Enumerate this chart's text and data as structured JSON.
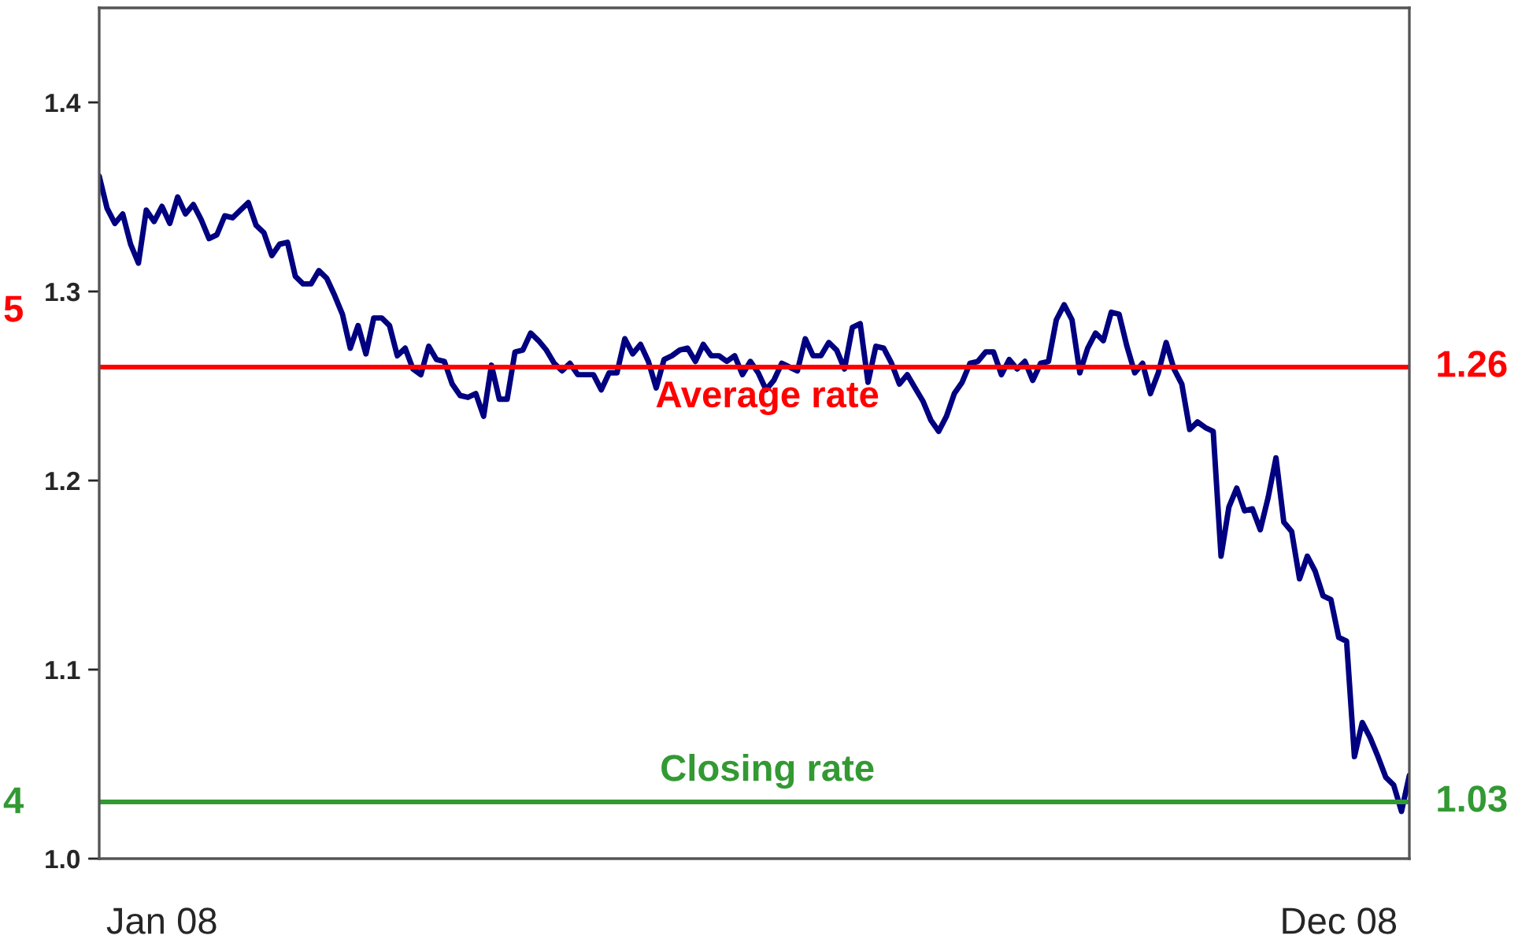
{
  "chart_data": {
    "type": "line",
    "categories": [
      null,
      null,
      null,
      null,
      null,
      null,
      null,
      null,
      "Jan 08",
      null,
      null,
      null,
      null,
      null,
      null,
      null,
      null,
      null,
      null,
      null,
      null,
      null,
      null,
      null,
      null,
      null,
      null,
      null,
      null,
      null,
      null,
      null,
      null,
      null,
      null,
      null,
      null,
      null,
      null,
      null,
      null,
      null,
      null,
      null,
      null,
      null,
      null,
      null,
      null,
      null,
      null,
      null,
      null,
      null,
      null,
      null,
      null,
      null,
      null,
      null,
      null,
      null,
      null,
      null,
      null,
      null,
      null,
      null,
      null,
      null,
      null,
      null,
      null,
      null,
      null,
      null,
      null,
      null,
      null,
      null,
      null,
      null,
      null,
      null,
      null,
      null,
      null,
      null,
      null,
      null,
      null,
      null,
      null,
      null,
      null,
      null,
      null,
      null,
      null,
      null,
      null,
      null,
      null,
      null,
      null,
      null,
      null,
      null,
      null,
      null,
      null,
      null,
      null,
      null,
      null,
      null,
      null,
      null,
      null,
      null,
      null,
      null,
      null,
      null,
      null,
      null,
      null,
      null,
      null,
      null,
      null,
      null,
      null,
      null,
      null,
      null,
      null,
      null,
      null,
      null,
      null,
      null,
      null,
      null,
      null,
      null,
      null,
      null,
      null,
      null,
      null,
      null,
      null,
      null,
      null,
      null,
      null,
      null,
      "Dec 08",
      null,
      null,
      null,
      null,
      null,
      null,
      null,
      null,
      null
    ],
    "series": [
      {
        "color": "#000080",
        "values": [
          1.361,
          1.344,
          1.336,
          1.341,
          1.325,
          1.315,
          1.343,
          1.337,
          1.345,
          1.336,
          1.35,
          1.341,
          1.346,
          1.338,
          1.328,
          1.33,
          1.34,
          1.339,
          1.343,
          1.347,
          1.335,
          1.331,
          1.319,
          1.325,
          1.326,
          1.308,
          1.304,
          1.304,
          1.311,
          1.307,
          1.298,
          1.288,
          1.27,
          1.282,
          1.267,
          1.286,
          1.286,
          1.282,
          1.266,
          1.27,
          1.259,
          1.256,
          1.271,
          1.264,
          1.263,
          1.251,
          1.245,
          1.244,
          1.246,
          1.234,
          1.261,
          1.243,
          1.243,
          1.268,
          1.269,
          1.278,
          1.274,
          1.269,
          1.262,
          1.258,
          1.262,
          1.256,
          1.256,
          1.256,
          1.248,
          1.257,
          1.257,
          1.275,
          1.267,
          1.272,
          1.263,
          1.249,
          1.264,
          1.266,
          1.269,
          1.27,
          1.263,
          1.272,
          1.266,
          1.266,
          1.263,
          1.266,
          1.256,
          1.263,
          1.257,
          1.248,
          1.253,
          1.262,
          1.26,
          1.258,
          1.275,
          1.266,
          1.266,
          1.273,
          1.269,
          1.259,
          1.281,
          1.283,
          1.252,
          1.271,
          1.27,
          1.262,
          1.251,
          1.256,
          1.249,
          1.242,
          1.232,
          1.226,
          1.234,
          1.246,
          1.252,
          1.262,
          1.263,
          1.268,
          1.268,
          1.256,
          1.264,
          1.259,
          1.263,
          1.253,
          1.262,
          1.263,
          1.285,
          1.293,
          1.285,
          1.257,
          1.27,
          1.278,
          1.274,
          1.289,
          1.288,
          1.271,
          1.257,
          1.262,
          1.246,
          1.257,
          1.273,
          1.259,
          1.251,
          1.227,
          1.231,
          1.228,
          1.226,
          1.16,
          1.186,
          1.196,
          1.184,
          1.185,
          1.174,
          1.191,
          1.212,
          1.178,
          1.173,
          1.148,
          1.16,
          1.152,
          1.139,
          1.137,
          1.117,
          1.115,
          1.054,
          1.072,
          1.064,
          1.054,
          1.043,
          1.039,
          1.025,
          1.044
        ]
      }
    ],
    "ylim": [
      1.0,
      1.45
    ],
    "yticks": [
      {
        "value": 1.0,
        "label": "1.0"
      },
      1.1,
      1.2,
      1.3,
      1.4
    ],
    "ref_lines": [
      {
        "axis": "y",
        "value": 1.26,
        "label": "1.26",
        "color": "#ff0000"
      },
      {
        "axis": "y",
        "value": 1.03,
        "label": "1.03",
        "color": "#339933"
      }
    ],
    "annotations": [
      {
        "text": "Average rate",
        "y": 1.26
      },
      {
        "text": "Closing rate",
        "y": 1.03
      },
      "5",
      "4"
    ],
    "grid": false,
    "legend": false,
    "marker": "none",
    "line_style": "solid"
  }
}
